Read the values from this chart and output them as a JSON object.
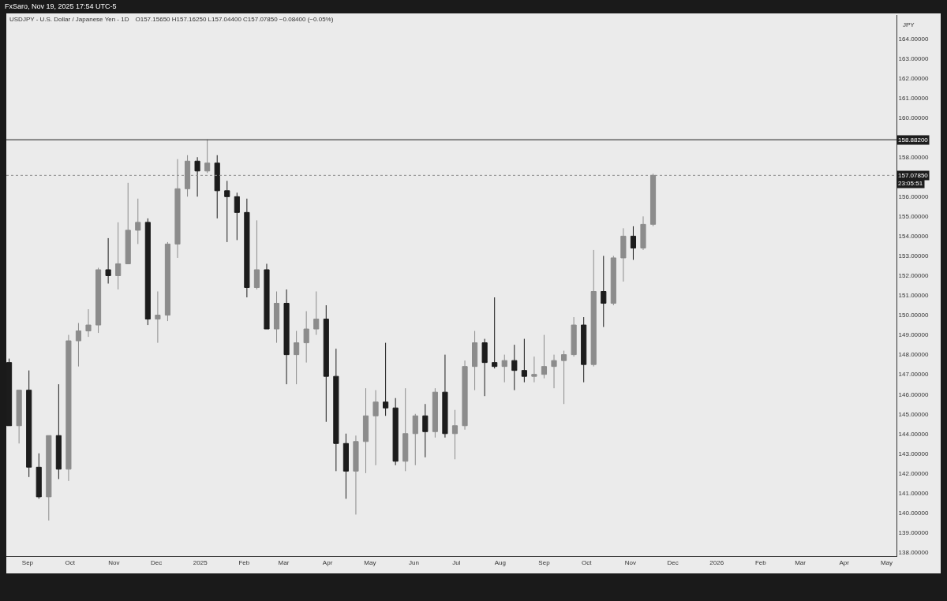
{
  "chart_data": {
    "type": "candlestick",
    "title": "USDJPY - U.S. Dollar / Japanese Yen - 1D",
    "subtitle": "FxSaro, Nov 19, 2025 17:54 UTC-5",
    "ylabel": "JPY",
    "annotations": [
      "O157.15650  H157.16250  L157.04400  C157.07850  −0.08400 (−0.05%)",
      "23:05:51"
    ],
    "x": [
      "2024-08-19",
      "2024-08-26",
      "2024-09-02",
      "2024-09-09",
      "2024-09-16",
      "2024-09-23",
      "2024-09-30",
      "2024-10-07",
      "2024-10-14",
      "2024-10-21",
      "2024-10-28",
      "2024-11-04",
      "2024-11-11",
      "2024-11-18",
      "2024-11-25",
      "2024-12-02",
      "2024-12-09",
      "2024-12-16",
      "2024-12-23",
      "2024-12-30",
      "2025-01-06",
      "2025-01-13",
      "2025-01-20",
      "2025-01-27",
      "2025-02-03",
      "2025-02-10",
      "2025-02-17",
      "2025-02-24",
      "2025-03-03",
      "2025-03-10",
      "2025-03-17",
      "2025-03-24",
      "2025-03-31",
      "2025-04-07",
      "2025-04-14",
      "2025-04-21",
      "2025-04-28",
      "2025-05-05",
      "2025-05-12",
      "2025-05-19",
      "2025-05-26",
      "2025-06-02",
      "2025-06-09",
      "2025-06-16",
      "2025-06-23",
      "2025-06-30",
      "2025-07-07",
      "2025-07-14",
      "2025-07-21",
      "2025-07-28",
      "2025-08-04",
      "2025-08-11",
      "2025-08-18",
      "2025-08-25",
      "2025-09-01",
      "2025-09-08",
      "2025-09-15",
      "2025-09-22",
      "2025-09-29",
      "2025-10-06",
      "2025-10-13",
      "2025-10-20",
      "2025-10-27",
      "2025-11-03",
      "2025-11-10",
      "2025-11-17"
    ],
    "ohlc": [
      [
        147.6,
        147.8,
        144.4,
        144.4
      ],
      [
        144.4,
        146.2,
        143.5,
        146.2
      ],
      [
        146.2,
        147.2,
        141.8,
        142.3
      ],
      [
        142.3,
        143.0,
        140.7,
        140.8
      ],
      [
        140.8,
        143.9,
        139.6,
        143.9
      ],
      [
        143.9,
        146.5,
        141.7,
        142.2
      ],
      [
        142.2,
        149.0,
        141.6,
        148.7
      ],
      [
        148.7,
        149.6,
        147.4,
        149.2
      ],
      [
        149.2,
        150.3,
        148.9,
        149.5
      ],
      [
        149.5,
        152.4,
        149.1,
        152.3
      ],
      [
        152.3,
        153.9,
        151.6,
        152.0
      ],
      [
        152.0,
        154.7,
        151.3,
        152.6
      ],
      [
        152.6,
        156.7,
        152.6,
        154.3
      ],
      [
        154.3,
        155.9,
        153.6,
        154.7
      ],
      [
        154.7,
        154.9,
        149.5,
        149.8
      ],
      [
        149.8,
        151.2,
        148.6,
        150.0
      ],
      [
        150.0,
        153.7,
        149.7,
        153.6
      ],
      [
        153.6,
        157.9,
        152.9,
        156.4
      ],
      [
        156.4,
        158.1,
        156.0,
        157.8
      ],
      [
        157.8,
        158.0,
        156.0,
        157.3
      ],
      [
        157.3,
        158.9,
        157.2,
        157.7
      ],
      [
        157.7,
        158.1,
        154.9,
        156.3
      ],
      [
        156.3,
        156.8,
        153.7,
        156.0
      ],
      [
        156.0,
        156.2,
        153.8,
        155.2
      ],
      [
        155.2,
        155.9,
        150.9,
        151.4
      ],
      [
        151.4,
        154.8,
        151.3,
        152.3
      ],
      [
        152.3,
        152.6,
        149.3,
        149.3
      ],
      [
        149.3,
        151.2,
        148.6,
        150.6
      ],
      [
        150.6,
        151.3,
        146.5,
        148.0
      ],
      [
        148.0,
        149.2,
        146.5,
        148.6
      ],
      [
        148.6,
        150.2,
        147.6,
        149.3
      ],
      [
        149.3,
        151.2,
        149.0,
        149.8
      ],
      [
        149.8,
        150.5,
        144.6,
        146.9
      ],
      [
        146.9,
        148.3,
        142.1,
        143.5
      ],
      [
        143.5,
        144.0,
        140.7,
        142.1
      ],
      [
        142.1,
        143.9,
        139.9,
        143.6
      ],
      [
        143.6,
        146.3,
        142.0,
        144.9
      ],
      [
        144.9,
        146.2,
        142.4,
        145.6
      ],
      [
        145.6,
        148.6,
        144.9,
        145.3
      ],
      [
        145.3,
        145.8,
        142.4,
        142.6
      ],
      [
        142.6,
        146.3,
        142.1,
        144.0
      ],
      [
        144.0,
        145.0,
        142.4,
        144.9
      ],
      [
        144.9,
        145.5,
        142.8,
        144.1
      ],
      [
        144.1,
        146.3,
        143.8,
        146.1
      ],
      [
        146.1,
        148.0,
        143.8,
        144.0
      ],
      [
        144.0,
        145.2,
        142.7,
        144.4
      ],
      [
        144.4,
        147.7,
        144.2,
        147.4
      ],
      [
        147.4,
        149.2,
        146.2,
        148.6
      ],
      [
        148.6,
        148.8,
        145.9,
        147.6
      ],
      [
        147.6,
        150.9,
        147.3,
        147.4
      ],
      [
        147.4,
        148.0,
        146.6,
        147.7
      ],
      [
        147.7,
        148.5,
        146.2,
        147.2
      ],
      [
        147.2,
        148.8,
        146.6,
        146.9
      ],
      [
        146.9,
        147.9,
        146.6,
        147.0
      ],
      [
        147.0,
        149.0,
        146.8,
        147.4
      ],
      [
        147.4,
        148.0,
        146.3,
        147.7
      ],
      [
        147.7,
        148.2,
        145.5,
        148.0
      ],
      [
        148.0,
        149.9,
        147.9,
        149.5
      ],
      [
        149.5,
        149.9,
        146.6,
        147.5
      ],
      [
        147.5,
        153.3,
        147.4,
        151.2
      ],
      [
        151.2,
        153.0,
        149.4,
        150.6
      ],
      [
        150.6,
        153.0,
        150.5,
        152.9
      ],
      [
        152.9,
        154.4,
        151.7,
        154.0
      ],
      [
        154.0,
        154.5,
        152.8,
        153.4
      ],
      [
        153.4,
        155.0,
        153.3,
        154.6
      ],
      [
        154.6,
        157.1625,
        154.5,
        157.0785
      ]
    ],
    "colors": [
      "#1c1c1c",
      "#8c8c8c",
      "#1c1c1c",
      "#1c1c1c",
      "#8c8c8c",
      "#1c1c1c",
      "#8c8c8c",
      "#8c8c8c",
      "#8c8c8c",
      "#8c8c8c",
      "#1c1c1c",
      "#8c8c8c",
      "#8c8c8c",
      "#8c8c8c",
      "#1c1c1c",
      "#8c8c8c",
      "#8c8c8c",
      "#8c8c8c",
      "#8c8c8c",
      "#1c1c1c",
      "#8c8c8c",
      "#1c1c1c",
      "#1c1c1c",
      "#1c1c1c",
      "#1c1c1c",
      "#8c8c8c",
      "#1c1c1c",
      "#8c8c8c",
      "#1c1c1c",
      "#8c8c8c",
      "#8c8c8c",
      "#8c8c8c",
      "#1c1c1c",
      "#1c1c1c",
      "#1c1c1c",
      "#8c8c8c",
      "#8c8c8c",
      "#8c8c8c",
      "#1c1c1c",
      "#1c1c1c",
      "#8c8c8c",
      "#8c8c8c",
      "#1c1c1c",
      "#8c8c8c",
      "#1c1c1c",
      "#8c8c8c",
      "#8c8c8c",
      "#8c8c8c",
      "#1c1c1c",
      "#1c1c1c",
      "#8c8c8c",
      "#1c1c1c",
      "#1c1c1c",
      "#8c8c8c",
      "#8c8c8c",
      "#8c8c8c",
      "#8c8c8c",
      "#8c8c8c",
      "#1c1c1c",
      "#8c8c8c",
      "#1c1c1c",
      "#8c8c8c",
      "#8c8c8c",
      "#1c1c1c",
      "#8c8c8c",
      "#8c8c8c"
    ],
    "xlim": [
      "2024-08-17",
      "2026-05-08"
    ],
    "xticks": [
      {
        "value": "2024-09-01",
        "label": "Sep"
      },
      {
        "value": "2024-10-01",
        "label": "Oct"
      },
      {
        "value": "2024-11-01",
        "label": "Nov"
      },
      {
        "value": "2024-12-01",
        "label": "Dec"
      },
      {
        "value": "2025-01-01",
        "label": "2025"
      },
      {
        "value": "2025-02-01",
        "label": "Feb"
      },
      {
        "value": "2025-03-01",
        "label": "Mar"
      },
      {
        "value": "2025-04-01",
        "label": "Apr"
      },
      {
        "value": "2025-05-01",
        "label": "May"
      },
      {
        "value": "2025-06-01",
        "label": "Jun"
      },
      {
        "value": "2025-07-01",
        "label": "Jul"
      },
      {
        "value": "2025-08-01",
        "label": "Aug"
      },
      {
        "value": "2025-09-01",
        "label": "Sep"
      },
      {
        "value": "2025-10-01",
        "label": "Oct"
      },
      {
        "value": "2025-11-01",
        "label": "Nov"
      },
      {
        "value": "2025-12-01",
        "label": "Dec"
      },
      {
        "value": "2026-01-01",
        "label": "2026"
      },
      {
        "value": "2026-02-01",
        "label": "Feb"
      },
      {
        "value": "2026-03-01",
        "label": "Mar"
      },
      {
        "value": "2026-04-01",
        "label": "Apr"
      },
      {
        "value": "2026-05-01",
        "label": "May"
      }
    ],
    "ylim": [
      137.8,
      165.2
    ],
    "yticks": [
      {
        "value": 138,
        "label": "138.00000"
      },
      {
        "value": 139,
        "label": "139.00000"
      },
      {
        "value": 140,
        "label": "140.00000"
      },
      {
        "value": 141,
        "label": "141.00000"
      },
      {
        "value": 142,
        "label": "142.00000"
      },
      {
        "value": 143,
        "label": "143.00000"
      },
      {
        "value": 144,
        "label": "144.00000"
      },
      {
        "value": 145,
        "label": "145.00000"
      },
      {
        "value": 146,
        "label": "146.00000"
      },
      {
        "value": 147,
        "label": "147.00000"
      },
      {
        "value": 148,
        "label": "148.00000"
      },
      {
        "value": 149,
        "label": "149.00000"
      },
      {
        "value": 150,
        "label": "150.00000"
      },
      {
        "value": 151,
        "label": "151.00000"
      },
      {
        "value": 152,
        "label": "152.00000"
      },
      {
        "value": 153,
        "label": "153.00000"
      },
      {
        "value": 154,
        "label": "154.00000"
      },
      {
        "value": 155,
        "label": "155.00000"
      },
      {
        "value": 156,
        "label": "156.00000"
      },
      {
        "value": 158,
        "label": "158.00000"
      },
      {
        "value": 160,
        "label": "160.00000"
      },
      {
        "value": 161,
        "label": "161.00000"
      },
      {
        "value": 162,
        "label": "162.00000"
      },
      {
        "value": 163,
        "label": "163.00000"
      },
      {
        "value": 164,
        "label": "164.00000"
      }
    ],
    "ref_lines": [
      {
        "axis": "y",
        "value": 158.882,
        "label": "158.88200",
        "color": "#1c1c1c",
        "line_style": "solid"
      },
      {
        "axis": "y",
        "value": 157.0785,
        "label": "157.07850",
        "color": "#8c8c8c",
        "line_style": "dotted"
      }
    ],
    "grid": false
  }
}
